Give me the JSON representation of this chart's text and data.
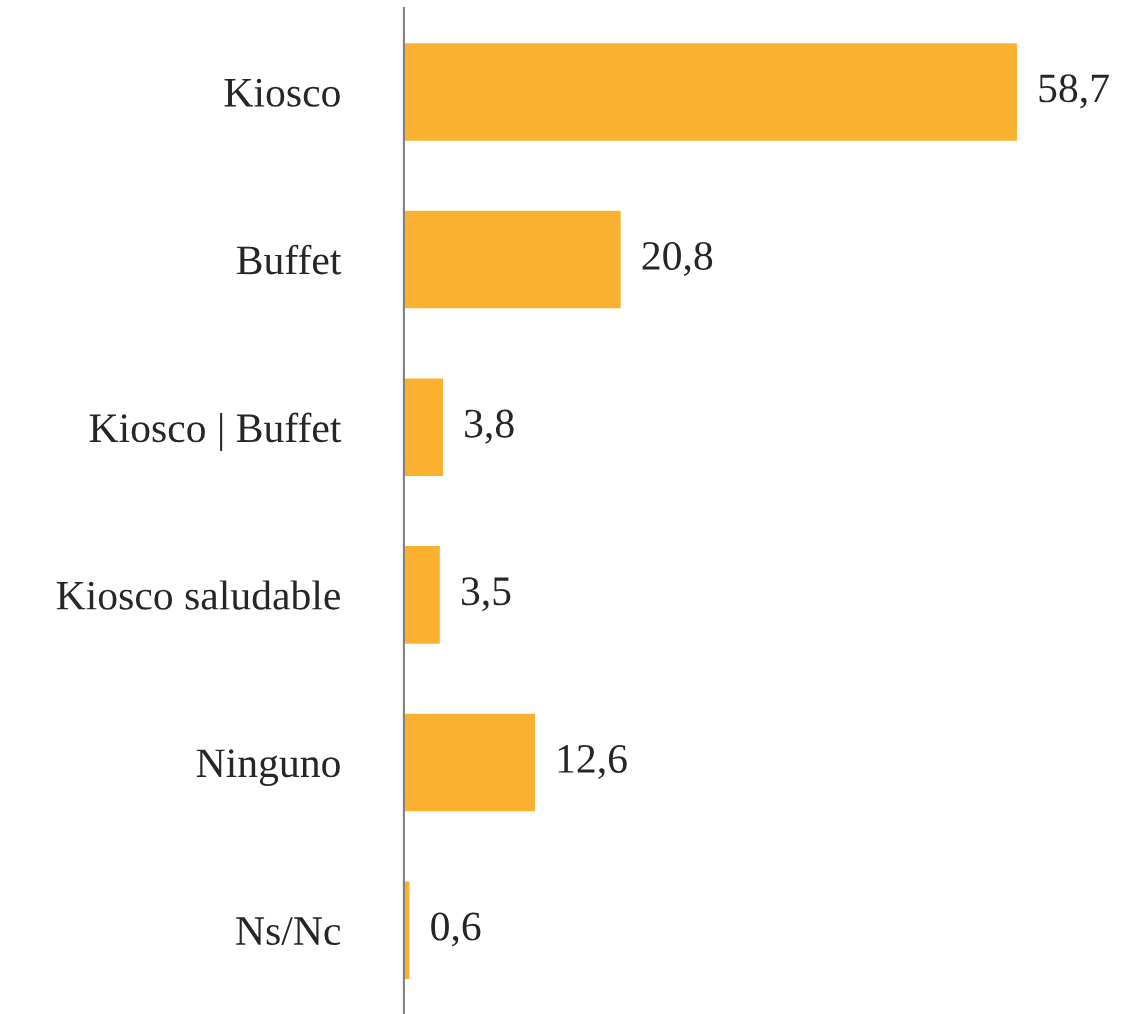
{
  "chart_data": {
    "type": "bar",
    "orientation": "horizontal",
    "categories": [
      "Kiosco",
      "Buffet",
      "Kiosco | Buffet",
      "Kiosco saludable",
      "Ninguno",
      "Ns/Nc"
    ],
    "values": [
      58.7,
      20.8,
      3.8,
      3.5,
      12.6,
      0.6
    ],
    "value_labels": [
      "58,7",
      "20,8",
      "3,8",
      "3,5",
      "12,6",
      "0,6"
    ],
    "color": "#fbb130",
    "grid": false,
    "legend": false,
    "tick_labels": "y"
  }
}
